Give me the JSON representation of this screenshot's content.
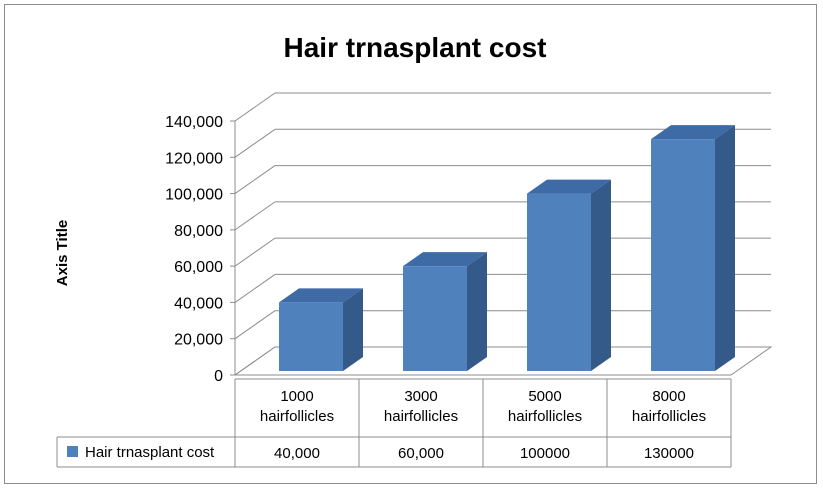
{
  "chart_data": {
    "type": "bar",
    "title": "Hair trnasplant cost",
    "ylabel": "Axis Title",
    "xlabel": "",
    "categories": [
      [
        "1000",
        "hairfollicles"
      ],
      [
        "3000",
        "hairfollicles"
      ],
      [
        "5000",
        "hairfollicles"
      ],
      [
        "8000",
        "hairfollicles"
      ]
    ],
    "series": [
      {
        "name": "Hair trnasplant cost",
        "values": [
          40000,
          60000,
          100000,
          130000
        ],
        "table_labels": [
          "40,000",
          "60,000",
          "100000",
          "130000"
        ],
        "color": "#4f81bd"
      }
    ],
    "ylim": [
      0,
      140000
    ],
    "yticks": [
      0,
      20000,
      40000,
      60000,
      80000,
      100000,
      120000,
      140000
    ],
    "ytick_labels": [
      "0",
      "20,000",
      "40,000",
      "60,000",
      "80,000",
      "100,000",
      "120,000",
      "140,000"
    ],
    "grid": true,
    "data_table": true,
    "style": "3d-column"
  }
}
